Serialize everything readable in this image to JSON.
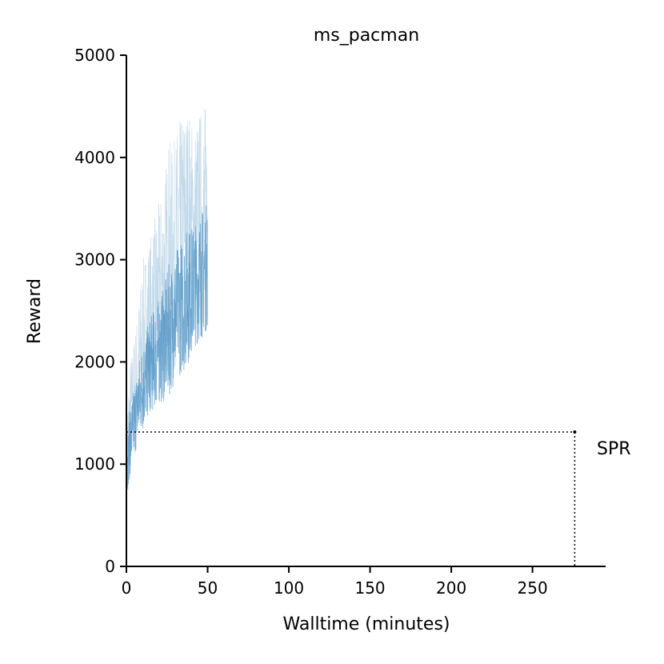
{
  "chart_data": {
    "type": "line",
    "title": "ms_pacman",
    "xlabel": "Walltime (minutes)",
    "ylabel": "Reward",
    "xlim": [
      0,
      295
    ],
    "ylim": [
      0,
      5000
    ],
    "x_ticks": [
      0,
      50,
      100,
      150,
      200,
      250
    ],
    "y_ticks": [
      0,
      1000,
      2000,
      3000,
      4000,
      5000
    ],
    "grid": false,
    "series": [
      {
        "color": "#1f77b4",
        "x": [
          0,
          2,
          4,
          6,
          8,
          10,
          12,
          14,
          16,
          18,
          20,
          22,
          24,
          26,
          28,
          30,
          32,
          34,
          36,
          38,
          40,
          42,
          44,
          46,
          48,
          50
        ],
        "mean": [
          900,
          1200,
          1350,
          1500,
          1650,
          1750,
          1850,
          1950,
          2000,
          2050,
          2100,
          2150,
          2200,
          2300,
          2350,
          2450,
          2500,
          2550,
          2600,
          2650,
          2700,
          2750,
          2800,
          2850,
          2900,
          2950
        ],
        "low": [
          650,
          800,
          950,
          1100,
          1250,
          1400,
          1500,
          1550,
          1600,
          1650,
          1700,
          1750,
          1800,
          1850,
          1900,
          1950,
          2000,
          2050,
          2100,
          2150,
          2150,
          2200,
          2250,
          2250,
          2300,
          2300
        ],
        "high": [
          1500,
          2000,
          2200,
          2400,
          2700,
          3000,
          3100,
          3200,
          3350,
          3450,
          3550,
          3700,
          3900,
          4200,
          4100,
          4200,
          4350,
          4400,
          4550,
          4550,
          4400,
          4350,
          4450,
          4500,
          4550,
          4550
        ]
      }
    ],
    "reference": {
      "label": "SPR",
      "x": 276,
      "y": 1315
    }
  }
}
